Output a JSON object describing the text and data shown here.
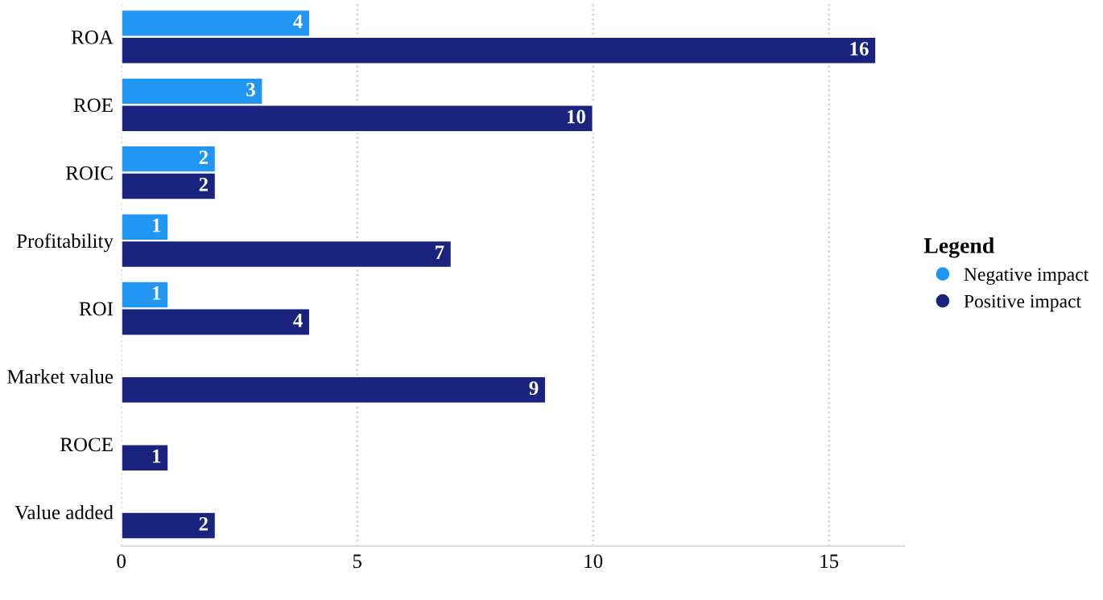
{
  "chart_data": {
    "type": "bar",
    "orientation": "horizontal",
    "categories": [
      "ROA",
      "ROE",
      "ROIC",
      "Profitability",
      "ROI",
      "Market value",
      "ROCE",
      "Value added"
    ],
    "series": [
      {
        "name": "Negative impact",
        "color": "#2196f3",
        "values": [
          4,
          3,
          2,
          1,
          1,
          null,
          null,
          null
        ]
      },
      {
        "name": "Positive impact",
        "color": "#1a237e",
        "values": [
          16,
          10,
          2,
          7,
          4,
          9,
          1,
          2
        ]
      }
    ],
    "xlim": [
      0,
      16.6
    ],
    "xticks": [
      0,
      5,
      10,
      15
    ],
    "grid": "x",
    "legend": "right",
    "legend_title": "Legend",
    "data_labels": true
  }
}
